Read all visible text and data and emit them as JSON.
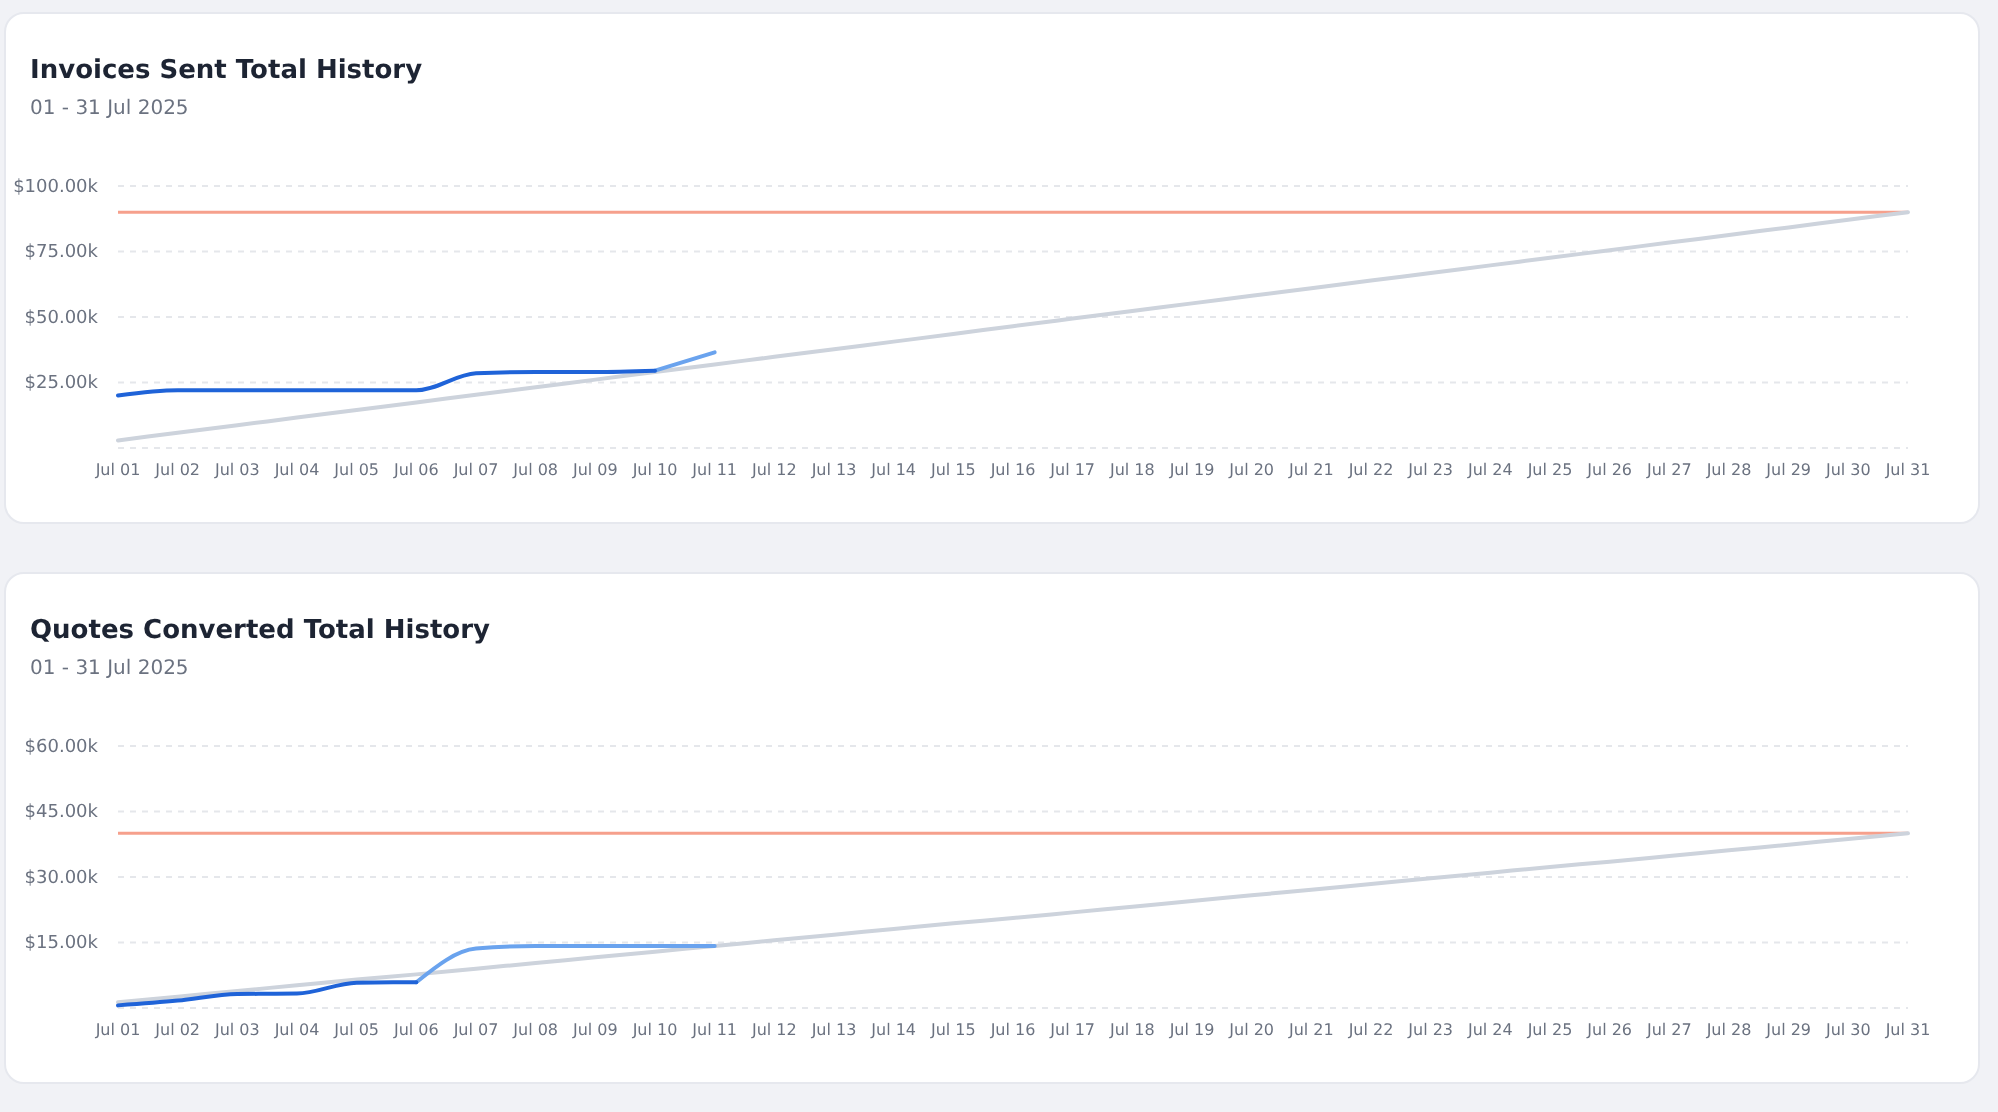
{
  "chart_data": [
    {
      "type": "line",
      "title": "Invoices Sent Total History",
      "subtitle": "01 - 31 Jul 2025",
      "categories": [
        "Jul 01",
        "Jul 02",
        "Jul 03",
        "Jul 04",
        "Jul 05",
        "Jul 06",
        "Jul 07",
        "Jul 08",
        "Jul 09",
        "Jul 10",
        "Jul 11",
        "Jul 12",
        "Jul 13",
        "Jul 14",
        "Jul 15",
        "Jul 16",
        "Jul 17",
        "Jul 18",
        "Jul 19",
        "Jul 20",
        "Jul 21",
        "Jul 22",
        "Jul 23",
        "Jul 24",
        "Jul 25",
        "Jul 26",
        "Jul 27",
        "Jul 28",
        "Jul 29",
        "Jul 30",
        "Jul 31"
      ],
      "series": [
        {
          "color": "#1f63d8",
          "values": [
            20000,
            22000,
            22000,
            22000,
            22000,
            22000,
            28500,
            29000,
            29000,
            29500,
            null,
            null,
            null,
            null,
            null,
            null,
            null,
            null,
            null,
            null,
            null,
            null,
            null,
            null,
            null,
            null,
            null,
            null,
            null,
            null,
            null
          ]
        },
        {
          "color": "#6aa3ee",
          "values": [
            null,
            null,
            null,
            null,
            null,
            null,
            null,
            null,
            null,
            29500,
            36500,
            null,
            null,
            null,
            null,
            null,
            null,
            null,
            null,
            null,
            null,
            null,
            null,
            null,
            null,
            null,
            null,
            null,
            null,
            null,
            null
          ]
        },
        {
          "color": "#cdd3dc",
          "values": [
            2900,
            5800,
            8700,
            11600,
            14500,
            17400,
            20300,
            23200,
            26100,
            29000,
            31900,
            34800,
            37700,
            40600,
            43500,
            46500,
            49400,
            52300,
            55200,
            58100,
            61000,
            63900,
            66800,
            69700,
            72600,
            75500,
            78400,
            81300,
            84200,
            87100,
            90000
          ]
        }
      ],
      "ylim": [
        0,
        100000
      ],
      "yticks": [
        {
          "value": 0,
          "label": null
        },
        {
          "value": 25000,
          "label": "$25.00k"
        },
        {
          "value": 50000,
          "label": "$50.00k"
        },
        {
          "value": 75000,
          "label": "$75.00k"
        },
        {
          "value": 100000,
          "label": "$100.00k"
        }
      ],
      "grid": "y",
      "ref_lines": [
        {
          "axis": "y",
          "value": 90000,
          "color": "#f6a08c"
        }
      ]
    },
    {
      "type": "line",
      "title": "Quotes Converted Total History",
      "subtitle": "01 - 31 Jul 2025",
      "categories": [
        "Jul 01",
        "Jul 02",
        "Jul 03",
        "Jul 04",
        "Jul 05",
        "Jul 06",
        "Jul 07",
        "Jul 08",
        "Jul 09",
        "Jul 10",
        "Jul 11",
        "Jul 12",
        "Jul 13",
        "Jul 14",
        "Jul 15",
        "Jul 16",
        "Jul 17",
        "Jul 18",
        "Jul 19",
        "Jul 20",
        "Jul 21",
        "Jul 22",
        "Jul 23",
        "Jul 24",
        "Jul 25",
        "Jul 26",
        "Jul 27",
        "Jul 28",
        "Jul 29",
        "Jul 30",
        "Jul 31"
      ],
      "series": [
        {
          "color": "#1f63d8",
          "values": [
            600,
            1700,
            3200,
            3300,
            5800,
            5900,
            null,
            null,
            null,
            null,
            null,
            null,
            null,
            null,
            null,
            null,
            null,
            null,
            null,
            null,
            null,
            null,
            null,
            null,
            null,
            null,
            null,
            null,
            null,
            null,
            null
          ]
        },
        {
          "color": "#6aa3ee",
          "values": [
            null,
            null,
            null,
            null,
            null,
            5900,
            13600,
            14200,
            14200,
            14200,
            14200,
            null,
            null,
            null,
            null,
            null,
            null,
            null,
            null,
            null,
            null,
            null,
            null,
            null,
            null,
            null,
            null,
            null,
            null,
            null,
            null
          ]
        },
        {
          "color": "#cdd3dc",
          "values": [
            1300,
            2600,
            3900,
            5200,
            6500,
            7700,
            9000,
            10300,
            11600,
            12900,
            14200,
            15500,
            16800,
            18100,
            19400,
            20600,
            21900,
            23200,
            24500,
            25800,
            27100,
            28400,
            29700,
            31000,
            32300,
            33500,
            34800,
            36100,
            37400,
            38700,
            40000
          ]
        }
      ],
      "ylim": [
        0,
        60000
      ],
      "yticks": [
        {
          "value": 0,
          "label": null
        },
        {
          "value": 15000,
          "label": "$15.00k"
        },
        {
          "value": 30000,
          "label": "$30.00k"
        },
        {
          "value": 45000,
          "label": "$45.00k"
        },
        {
          "value": 60000,
          "label": "$60.00k"
        }
      ],
      "grid": "y",
      "ref_lines": [
        {
          "axis": "y",
          "value": 40000,
          "color": "#f6a08c"
        }
      ]
    }
  ]
}
